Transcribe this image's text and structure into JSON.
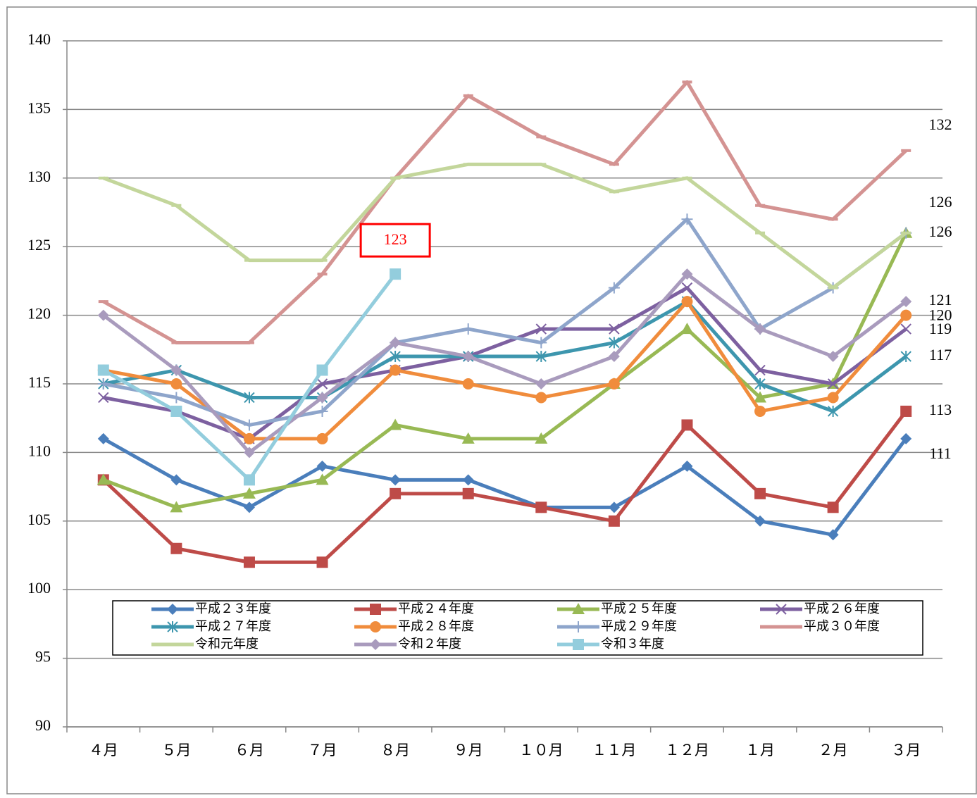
{
  "chart_data": {
    "type": "line",
    "categories": [
      "４月",
      "５月",
      "６月",
      "７月",
      "８月",
      "９月",
      "１０月",
      "１１月",
      "１２月",
      "１月",
      "２月",
      "３月"
    ],
    "ylim": [
      90,
      140
    ],
    "yticks": [
      90,
      95,
      100,
      105,
      110,
      115,
      120,
      125,
      130,
      135,
      140
    ],
    "grid": true,
    "series": [
      {
        "name": "平成２３年度",
        "color": "#4a7ebb",
        "marker": "diamond",
        "end_label": true,
        "values": [
          111,
          108,
          106,
          109,
          108,
          108,
          106,
          106,
          109,
          105,
          104,
          111
        ]
      },
      {
        "name": "平成２４年度",
        "color": "#be4b48",
        "marker": "square",
        "end_label": true,
        "values": [
          108,
          103,
          102,
          102,
          107,
          107,
          106,
          105,
          112,
          107,
          106,
          113
        ]
      },
      {
        "name": "平成２５年度",
        "color": "#98b954",
        "marker": "triangle",
        "end_label": true,
        "values": [
          108,
          106,
          107,
          108,
          112,
          111,
          111,
          115,
          119,
          114,
          115,
          126
        ]
      },
      {
        "name": "平成２６年度",
        "color": "#7d60a0",
        "marker": "x",
        "end_label": true,
        "values": [
          114,
          113,
          111,
          115,
          116,
          117,
          119,
          119,
          122,
          116,
          115,
          119
        ]
      },
      {
        "name": "平成２７年度",
        "color": "#3d96ae",
        "marker": "star",
        "end_label": true,
        "values": [
          115,
          116,
          114,
          114,
          117,
          117,
          117,
          118,
          121,
          115,
          113,
          117
        ]
      },
      {
        "name": "平成２８年度",
        "color": "#f08c3c",
        "marker": "circle",
        "end_label": true,
        "values": [
          116,
          115,
          111,
          111,
          116,
          115,
          114,
          115,
          121,
          113,
          114,
          120
        ]
      },
      {
        "name": "平成２９年度",
        "color": "#8ea5cb",
        "marker": "plus",
        "end_label": false,
        "values": [
          115,
          114,
          112,
          113,
          118,
          119,
          118,
          122,
          127,
          119,
          122,
          126
        ]
      },
      {
        "name": "平成３０年度",
        "color": "#d49392",
        "marker": "dash",
        "end_label": true,
        "values": [
          121,
          118,
          118,
          123,
          130,
          136,
          133,
          131,
          137,
          128,
          127,
          132
        ]
      },
      {
        "name": "令和元年度",
        "color": "#c3d69b",
        "marker": "dash",
        "end_label": true,
        "values": [
          130,
          128,
          124,
          124,
          130,
          131,
          131,
          129,
          130,
          126,
          122,
          126
        ]
      },
      {
        "name": "令和２年度",
        "color": "#a99bbd",
        "marker": "diamond",
        "end_label": true,
        "values": [
          120,
          116,
          110,
          114,
          118,
          117,
          115,
          117,
          123,
          119,
          117,
          121
        ]
      },
      {
        "name": "令和３年度",
        "color": "#93cddd",
        "marker": "square",
        "end_label": false,
        "callout_color": "#ff0000",
        "values": [
          116,
          113,
          108,
          116,
          123,
          null,
          null,
          null,
          null,
          null,
          null,
          null
        ]
      }
    ]
  }
}
